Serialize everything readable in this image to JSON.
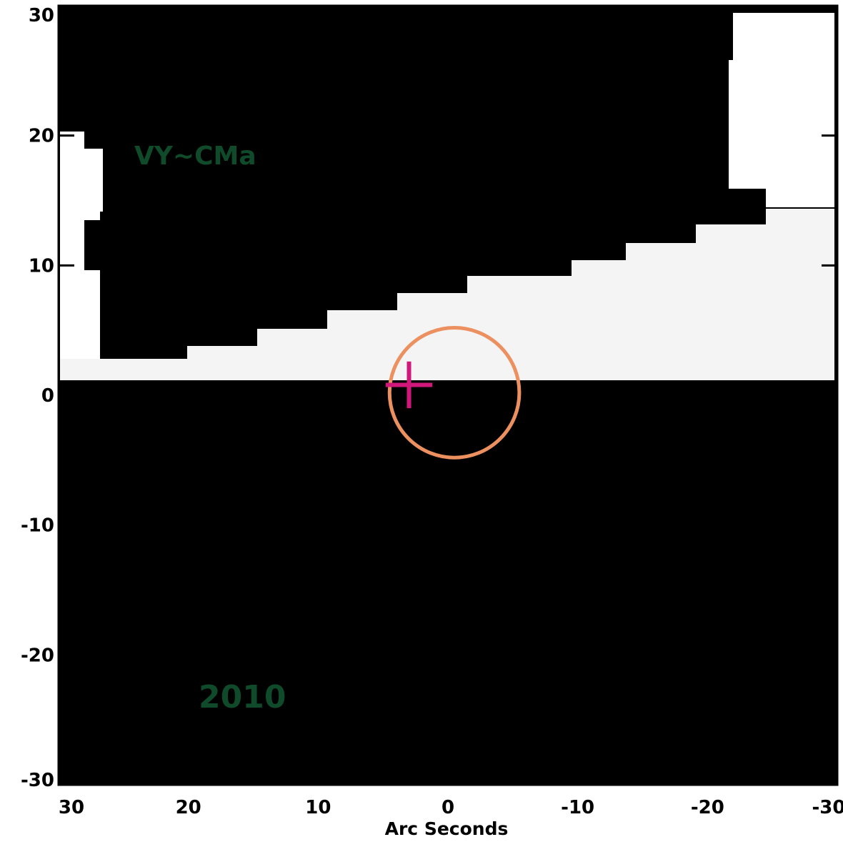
{
  "map": {
    "object_label": "VY~CMa",
    "year_label": "2010",
    "x_axis_title": "Arc Seconds",
    "x_ticks": [
      30,
      20,
      10,
      0,
      -10,
      -20,
      -30
    ],
    "x_tick_labels": [
      "30",
      "20",
      "10",
      "0",
      "-10",
      "-20",
      "-30"
    ],
    "y_ticks": [
      30,
      20,
      10,
      0,
      -10,
      -20,
      -30
    ],
    "y_tick_labels": [
      "30",
      "20",
      "10",
      "0",
      "-10",
      "-20",
      "-30"
    ],
    "x_range": [
      30,
      -30
    ],
    "y_range": [
      -30,
      30
    ],
    "target_circle": {
      "center": [
        -0.5,
        0.2
      ],
      "radius": 5.0
    },
    "cross_marker": {
      "center": [
        3.0,
        0.8
      ],
      "half_size": 1.8
    },
    "colors": {
      "background": "#000000",
      "saturated_region": "#ffffff",
      "saturated_band": "#f5f4f4",
      "annotation_text": "#0f4a2a",
      "target_circle": "#ec9060",
      "cross_marker": "#d0187a",
      "axis": "#000000"
    }
  }
}
